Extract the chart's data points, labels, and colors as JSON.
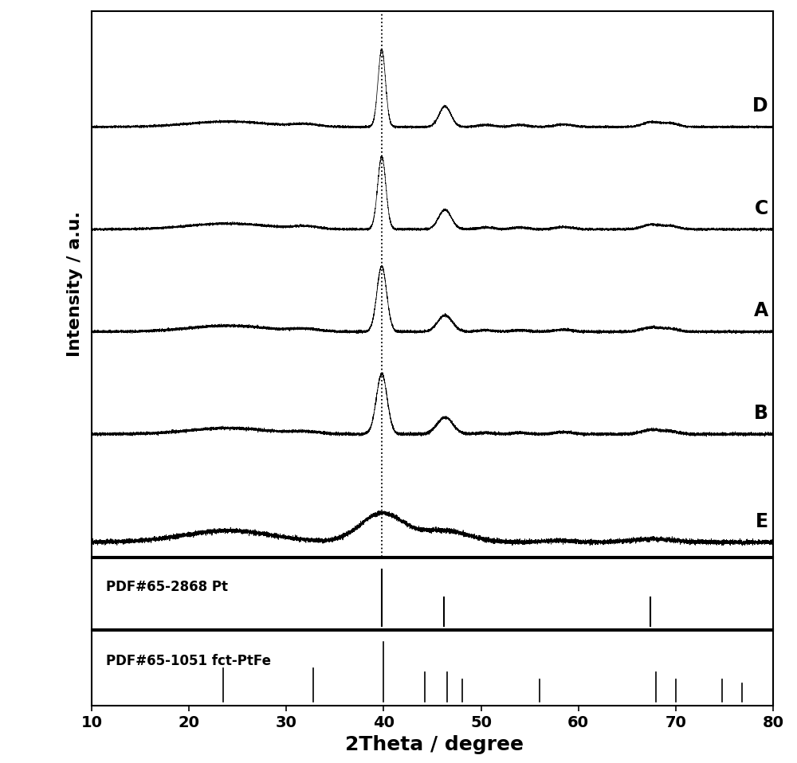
{
  "xlabel": "2Theta / degree",
  "ylabel": "Intensity / a.u.",
  "xlim": [
    10,
    80
  ],
  "dotted_line_x": 39.8,
  "stack_order": [
    "E",
    "B",
    "A",
    "C",
    "D"
  ],
  "pdf_pt_label": "PDF#65-2868 Pt",
  "pdf_ptfe_label": "PDF#65-1051 fct-PtFe",
  "pt_peaks": [
    39.8,
    46.2,
    67.4
  ],
  "ptfe_peaks": [
    23.5,
    32.8,
    40.0,
    44.2,
    46.5,
    48.1,
    56.0,
    68.0,
    70.0,
    74.8,
    76.8
  ],
  "background_color": "#ffffff"
}
